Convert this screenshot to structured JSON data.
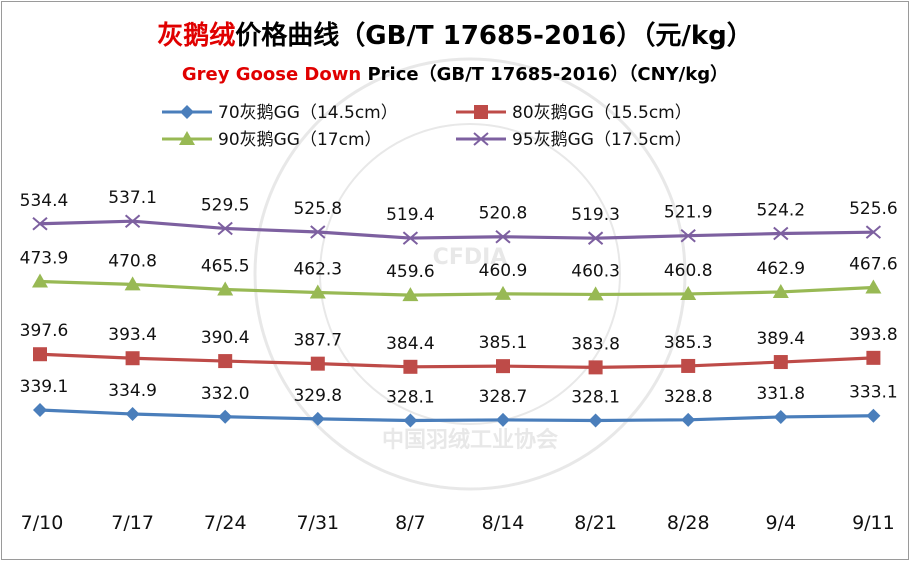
{
  "chart_data": {
    "type": "line",
    "title_red": "灰鹅绒",
    "title_black": "价格曲线（GB/T 17685-2016）（元/kg）",
    "subtitle_red": "Grey Goose Down",
    "subtitle_black": " Price（GB/T 17685-2016）（CNY/kg）",
    "categories": [
      "7/10",
      "7/17",
      "7/24",
      "7/31",
      "8/7",
      "8/14",
      "8/21",
      "8/28",
      "9/4",
      "9/11"
    ],
    "series": [
      {
        "name": "70灰鹅GG（14.5cm）",
        "marker": "diamond",
        "color": "#4a7ebb",
        "values": [
          339.1,
          334.9,
          332.0,
          329.8,
          328.1,
          328.7,
          328.1,
          328.8,
          331.8,
          333.1
        ],
        "labels": [
          "339.1",
          "334.9",
          "332.0",
          "329.8",
          "328.1",
          "328.7",
          "328.1",
          "328.8",
          "331.8",
          "333.1"
        ]
      },
      {
        "name": "80灰鹅GG（15.5cm）",
        "marker": "square",
        "color": "#be4b48",
        "values": [
          397.6,
          393.4,
          390.4,
          387.7,
          384.4,
          385.1,
          383.8,
          385.3,
          389.4,
          393.8
        ],
        "labels": [
          "397.6",
          "393.4",
          "390.4",
          "387.7",
          "384.4",
          "385.1",
          "383.8",
          "385.3",
          "389.4",
          "393.8"
        ]
      },
      {
        "name": "90灰鹅GG（17cm）",
        "marker": "triangle",
        "color": "#98b954",
        "values": [
          473.9,
          470.8,
          465.5,
          462.3,
          459.6,
          460.9,
          460.3,
          460.8,
          462.9,
          467.6
        ],
        "labels": [
          "473.9",
          "470.8",
          "465.5",
          "462.3",
          "459.6",
          "460.9",
          "460.3",
          "460.8",
          "462.9",
          "467.6"
        ]
      },
      {
        "name": "95灰鹅GG（17.5cm）",
        "marker": "x",
        "color": "#7d60a0",
        "values": [
          534.4,
          537.1,
          529.5,
          525.8,
          519.4,
          520.8,
          519.3,
          521.9,
          524.2,
          525.6
        ],
        "labels": [
          "534.4",
          "537.1",
          "529.5",
          "525.8",
          "519.4",
          "520.8",
          "519.3",
          "521.9",
          "524.2",
          "525.6"
        ]
      }
    ],
    "legend_position": "top",
    "grid": false,
    "watermark": "中国羽绒工业协会",
    "colors": {
      "title_red": "#e00000",
      "title_black": "#000000"
    }
  }
}
